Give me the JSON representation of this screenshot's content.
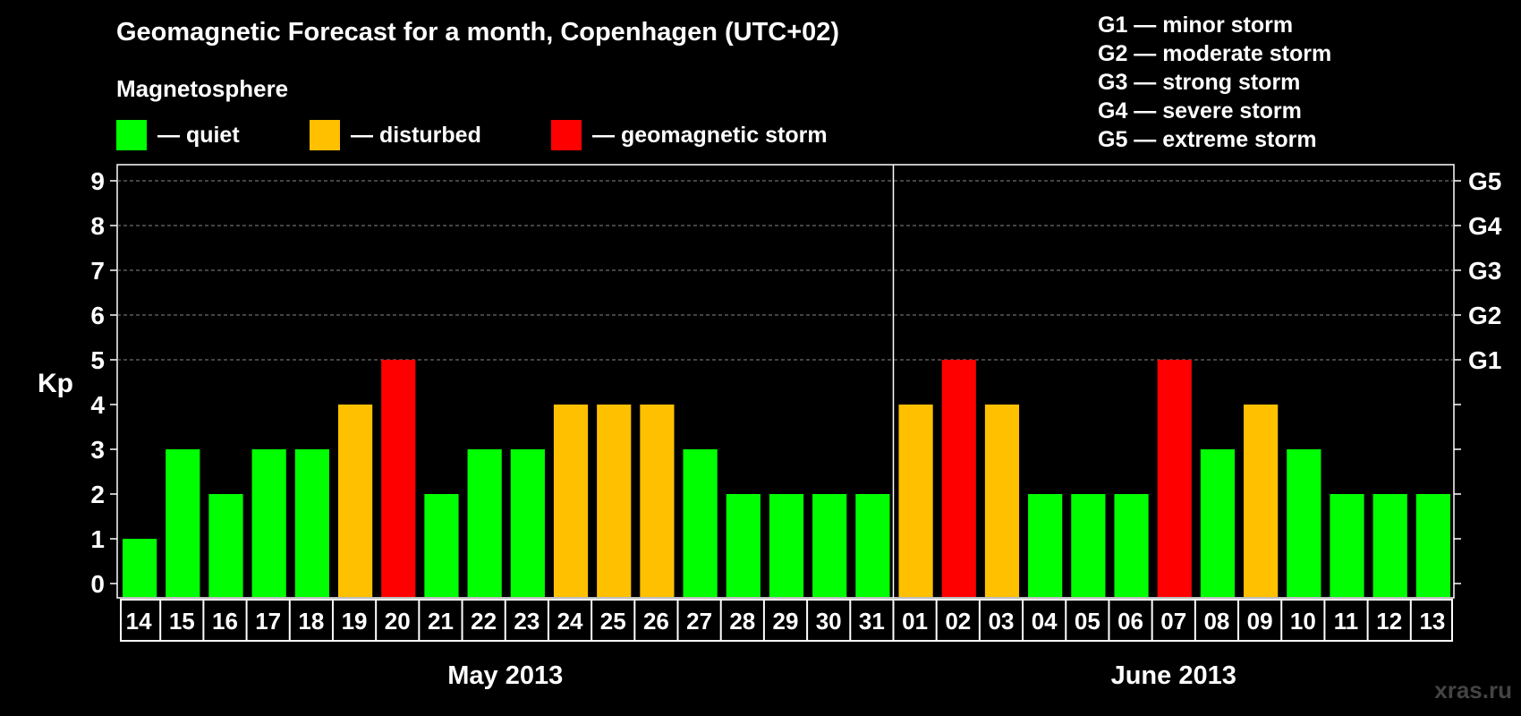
{
  "title": "Geomagnetic Forecast for a month, Copenhagen (UTC+02)",
  "magnetosphere": {
    "title": "Magnetosphere",
    "items": [
      {
        "label": "— quiet",
        "color": "#00ff00"
      },
      {
        "label": "— disturbed",
        "color": "#ffc000"
      },
      {
        "label": "— geomagnetic storm",
        "color": "#ff0000"
      }
    ]
  },
  "storm_scale": [
    "G1 — minor storm",
    "G2 — moderate storm",
    "G3 — strong storm",
    "G4 — severe storm",
    "G5 — extreme storm"
  ],
  "watermark": "xras.ru",
  "chart_data": {
    "type": "bar",
    "ylabel": "Kp",
    "ylim": [
      0,
      9
    ],
    "yticks": [
      "0",
      "1",
      "2",
      "3",
      "4",
      "5",
      "6",
      "7",
      "8",
      "9"
    ],
    "right_ticks": [
      {
        "value": 5,
        "label": "G1"
      },
      {
        "value": 6,
        "label": "G2"
      },
      {
        "value": 7,
        "label": "G3"
      },
      {
        "value": 8,
        "label": "G4"
      },
      {
        "value": 9,
        "label": "G5"
      }
    ],
    "grid": "dashed at Kp 5–9",
    "categories": [
      "14",
      "15",
      "16",
      "17",
      "18",
      "19",
      "20",
      "21",
      "22",
      "23",
      "24",
      "25",
      "26",
      "27",
      "28",
      "29",
      "30",
      "31",
      "01",
      "02",
      "03",
      "04",
      "05",
      "06",
      "07",
      "08",
      "09",
      "10",
      "11",
      "12",
      "13"
    ],
    "values": [
      1,
      3,
      2,
      3,
      3,
      4,
      5,
      2,
      3,
      3,
      4,
      4,
      4,
      3,
      2,
      2,
      2,
      2,
      4,
      5,
      4,
      2,
      2,
      2,
      5,
      3,
      4,
      3,
      2,
      2,
      2
    ],
    "months": [
      {
        "label": "May 2013",
        "count": 18
      },
      {
        "label": "June 2013",
        "count": 13
      }
    ],
    "colors": {
      "quiet": "#00ff00",
      "disturbed": "#ffc000",
      "storm": "#ff0000"
    }
  }
}
